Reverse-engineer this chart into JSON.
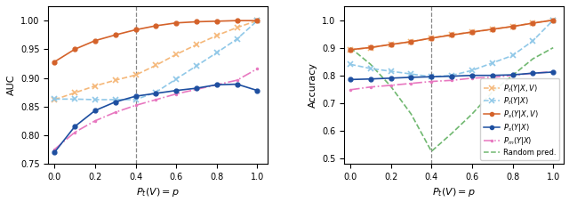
{
  "p_values": [
    0.0,
    0.1,
    0.2,
    0.3,
    0.4,
    0.5,
    0.6,
    0.7,
    0.8,
    0.9,
    1.0
  ],
  "auc_Pt_YXV": [
    0.862,
    0.874,
    0.886,
    0.896,
    0.905,
    0.922,
    0.941,
    0.958,
    0.974,
    0.988,
    1.0
  ],
  "auc_Pt_YX": [
    0.863,
    0.863,
    0.862,
    0.862,
    0.862,
    0.875,
    0.898,
    0.921,
    0.944,
    0.968,
    1.0
  ],
  "auc_Ps_YXV": [
    0.928,
    0.95,
    0.965,
    0.975,
    0.984,
    0.991,
    0.996,
    0.998,
    0.999,
    1.0,
    1.0
  ],
  "auc_Ps_YX": [
    0.77,
    0.815,
    0.843,
    0.858,
    0.868,
    0.873,
    0.878,
    0.882,
    0.888,
    0.889,
    0.878
  ],
  "auc_Pm_YX": [
    0.775,
    0.805,
    0.825,
    0.84,
    0.852,
    0.862,
    0.872,
    0.88,
    0.888,
    0.896,
    0.916
  ],
  "acc_Pt_YXV": [
    0.893,
    0.9,
    0.912,
    0.922,
    0.935,
    0.948,
    0.956,
    0.967,
    0.977,
    0.99,
    1.0
  ],
  "acc_Pt_YX": [
    0.84,
    0.825,
    0.815,
    0.805,
    0.795,
    0.8,
    0.818,
    0.845,
    0.872,
    0.925,
    1.0
  ],
  "acc_Ps_YXV": [
    0.893,
    0.901,
    0.912,
    0.922,
    0.935,
    0.946,
    0.957,
    0.967,
    0.977,
    0.989,
    1.0
  ],
  "acc_Ps_YX": [
    0.785,
    0.787,
    0.79,
    0.793,
    0.795,
    0.797,
    0.8,
    0.8,
    0.802,
    0.808,
    0.812
  ],
  "acc_Pm_YX": [
    0.748,
    0.758,
    0.764,
    0.771,
    0.778,
    0.782,
    0.79,
    0.793,
    0.8,
    0.808,
    0.813
  ],
  "acc_random": [
    0.9,
    0.84,
    0.76,
    0.66,
    0.525,
    0.59,
    0.66,
    0.74,
    0.8,
    0.86,
    0.9
  ],
  "vline_x": 0.4,
  "color_Pt_YXV": "#f5b87a",
  "color_Pt_YX": "#90c8e8",
  "color_Ps_YXV": "#d4622a",
  "color_Ps_YX": "#1e4fa0",
  "color_Pm_YX": "#e878c0",
  "color_random": "#70b870",
  "auc_ylim": [
    0.75,
    1.025
  ],
  "acc_ylim": [
    0.48,
    1.05
  ],
  "auc_yticks": [
    0.75,
    0.8,
    0.85,
    0.9,
    0.95,
    1.0
  ],
  "acc_yticks": [
    0.5,
    0.6,
    0.7,
    0.8,
    0.9,
    1.0
  ],
  "xlabel": "$P_t(V) = p$",
  "auc_ylabel": "AUC",
  "acc_ylabel": "Accuracy",
  "legend_labels": [
    "$P_t(Y|X,V)$",
    "$P_t(Y|X)$",
    "$P_s(Y|X,V)$",
    "$P_s(Y|X)$",
    "$P_m(Y|X)$",
    "Random pred."
  ]
}
